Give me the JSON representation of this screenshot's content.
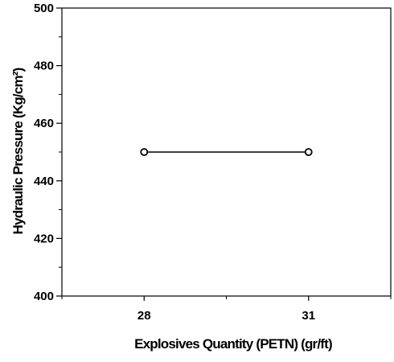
{
  "chart_data": {
    "type": "line",
    "title": "",
    "xlabel": "Explosives Quantity (PETN)  (gr/ft)",
    "ylabel": "Hydraulic Pressure (Kg/cm²)",
    "categories": [
      "28",
      "31"
    ],
    "series": [
      {
        "values": [
          450,
          450
        ],
        "marker": "open-circle",
        "color": "#000000"
      }
    ],
    "ylim": [
      400,
      500
    ],
    "yticks": [
      400,
      420,
      440,
      460,
      480,
      500
    ],
    "grid": false,
    "legend": "none"
  }
}
